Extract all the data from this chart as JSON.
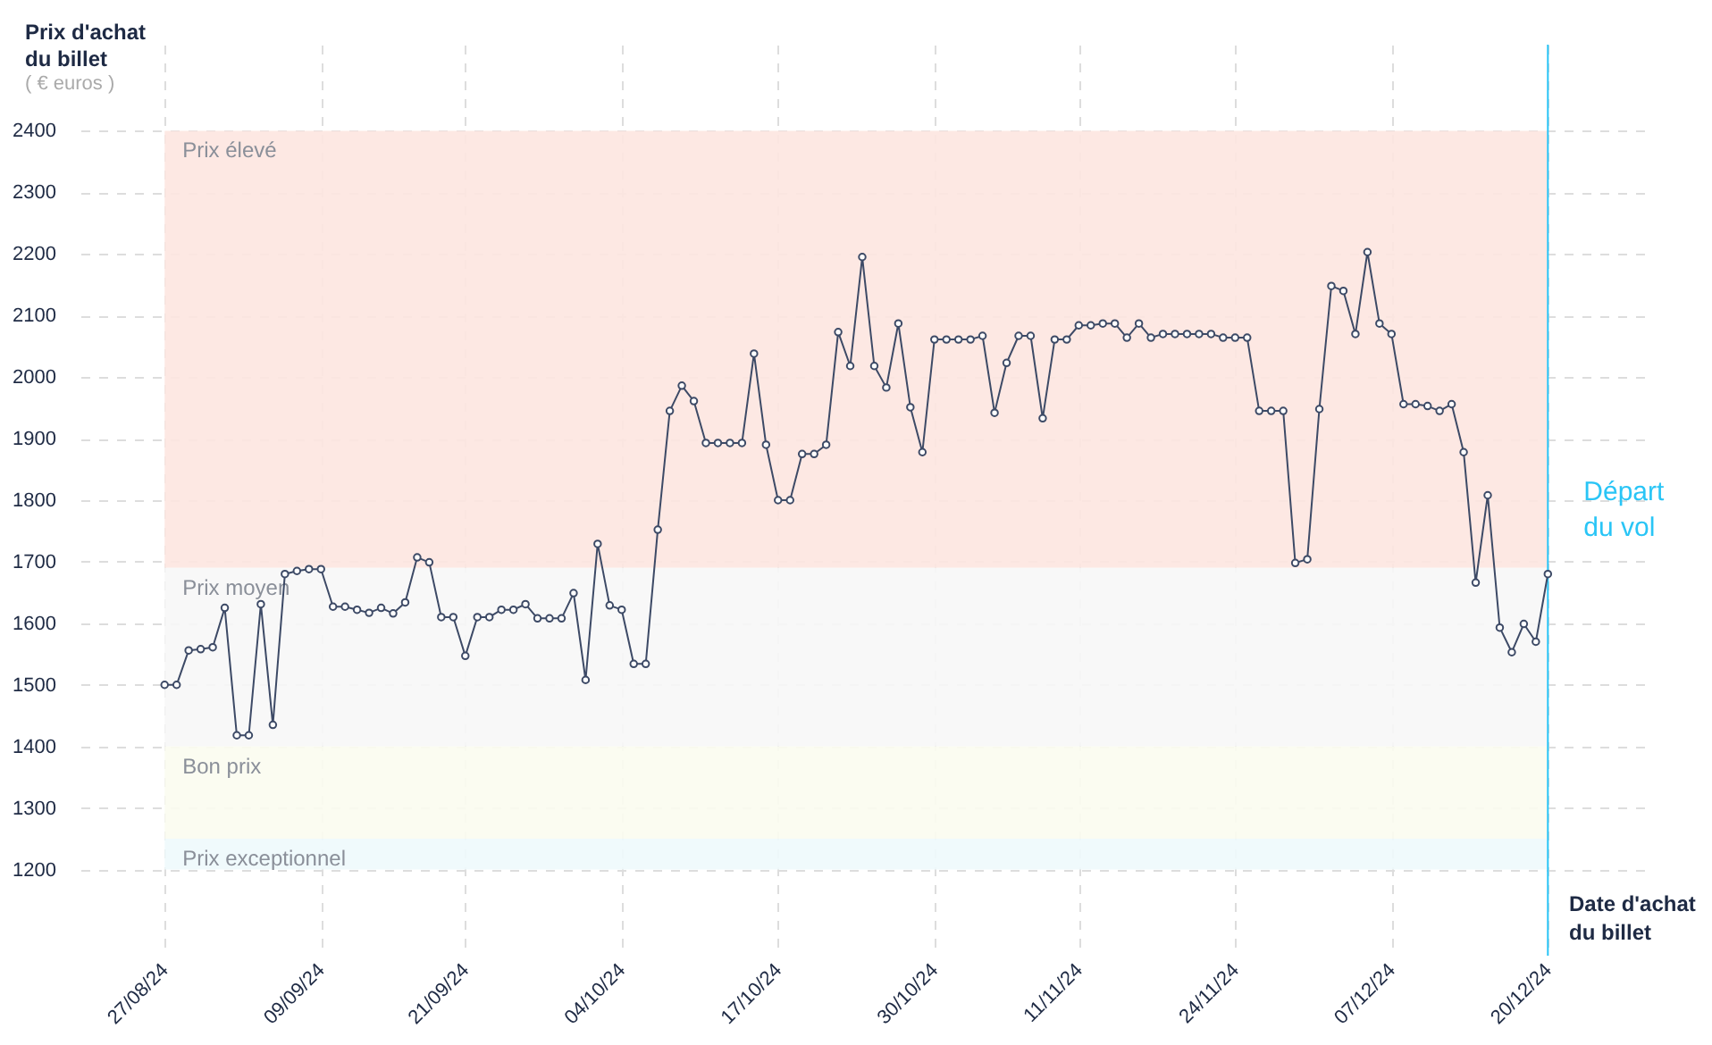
{
  "chart_data": {
    "type": "line",
    "ylabel": "Prix d'achat du billet",
    "xlabel": "Date d'achat du billet",
    "annotations": [
      "( € euros )"
    ],
    "x": [
      "--08-27",
      "--08-28",
      "--08-29",
      "--08-30",
      "--08-31",
      "--09-01",
      "--09-02",
      "--09-03",
      "--09-04",
      "--09-05",
      "--09-06",
      "--09-07",
      "--09-08",
      "--09-09",
      "--09-10",
      "--09-11",
      "--09-12",
      "--09-13",
      "--09-14",
      "--09-15",
      "--09-16",
      "--09-17",
      "--09-18",
      "--09-19",
      "--09-20",
      "--09-21",
      "--09-22",
      "--09-23",
      "--09-24",
      "--09-25",
      "--09-26",
      "--09-27",
      "--09-28",
      "--09-29",
      "--09-30",
      "--10-01",
      "--10-02",
      "--10-03",
      "--10-04",
      "--10-05",
      "--10-06",
      "--10-07",
      "--10-08",
      "--10-09",
      "--10-10",
      "--10-11",
      "--10-12",
      "--10-13",
      "--10-14",
      "--10-15",
      "--10-16",
      "--10-17",
      "--10-18",
      "--10-19",
      "--10-20",
      "--10-21",
      "--10-22",
      "--10-23",
      "--10-24",
      "--10-25",
      "--10-26",
      "--10-27",
      "--10-28",
      "--10-29",
      "--10-30",
      "--10-31",
      "--11-01",
      "--11-02",
      "--11-03",
      "--11-04",
      "--11-05",
      "--11-06",
      "--11-07",
      "--11-08",
      "--11-09",
      "--11-10",
      "--11-11",
      "--11-12",
      "--11-13",
      "--11-14",
      "--11-15",
      "--11-16",
      "--11-17",
      "--11-18",
      "--11-19",
      "--11-20",
      "--11-21",
      "--11-22",
      "--11-23",
      "--11-24",
      "--11-25",
      "--11-26",
      "--11-27",
      "--11-28",
      "--11-29",
      "--11-30",
      "--12-01",
      "--12-02",
      "--12-03",
      "--12-04",
      "--12-05",
      "--12-06",
      "--12-07",
      "--12-08",
      "--12-09",
      "--12-10",
      "--12-11",
      "--12-12",
      "--12-13",
      "--12-14",
      "--12-15",
      "--12-16",
      "--12-17",
      "--12-18",
      "--12-19",
      "--12-20"
    ],
    "series": [
      {
        "color": "#3d4a66",
        "values": [
          1500,
          1500,
          1556,
          1558,
          1561,
          1625,
          1418,
          1418,
          1631,
          1435,
          1680,
          1685,
          1688,
          1688,
          1627,
          1627,
          1622,
          1617,
          1625,
          1616,
          1634,
          1707,
          1699,
          1610,
          1610,
          1547,
          1610,
          1610,
          1622,
          1622,
          1631,
          1608,
          1608,
          1608,
          1649,
          1508,
          1729,
          1629,
          1622,
          1534,
          1534,
          1752,
          1945,
          1986,
          1961,
          1893,
          1893,
          1893,
          1893,
          2038,
          1890,
          1800,
          1800,
          1875,
          1875,
          1890,
          2073,
          2018,
          2195,
          2018,
          1983,
          2087,
          1951,
          1878,
          2061,
          2061,
          2061,
          2061,
          2067,
          1942,
          2023,
          2067,
          2067,
          1933,
          2061,
          2061,
          2084,
          2084,
          2087,
          2087,
          2064,
          2087,
          2064,
          2070,
          2070,
          2070,
          2070,
          2070,
          2064,
          2064,
          2064,
          1945,
          1945,
          1945,
          1698,
          1704,
          1948,
          2148,
          2140,
          2070,
          2203,
          2087,
          2070,
          1956,
          1956,
          1953,
          1945,
          1956,
          1878,
          1666,
          1808,
          1593,
          1553,
          1599,
          1570,
          1680
        ]
      }
    ],
    "xlim": [
      "--08-20",
      "--12-28"
    ],
    "xticks": [
      {
        "value": "--08-27",
        "label": "27/08/24"
      },
      {
        "value": "--09-09",
        "label": "09/09/24"
      },
      {
        "value": "--09-21",
        "label": "21/09/24"
      },
      {
        "value": "--10-04",
        "label": "04/10/24"
      },
      {
        "value": "--10-17",
        "label": "17/10/24"
      },
      {
        "value": "--10-30",
        "label": "30/10/24"
      },
      {
        "value": "--11-11",
        "label": "11/11/24"
      },
      {
        "value": "--11-24",
        "label": "24/11/24"
      },
      {
        "value": "--12-07",
        "label": "07/12/24"
      },
      {
        "value": "--12-20",
        "label": "20/12/24"
      }
    ],
    "ylim": [
      1060,
      2540
    ],
    "yticks": [
      1200,
      1300,
      1400,
      1500,
      1600,
      1700,
      1800,
      1900,
      2000,
      2100,
      2200,
      2300,
      2400
    ],
    "bands": [
      {
        "axis": "y",
        "from": 1690,
        "to": 2400,
        "label": "Prix élevé",
        "color": "#fde6e0"
      },
      {
        "axis": "y",
        "from": 1400,
        "to": 1690,
        "label": "Prix moyen",
        "color": "#f7f7f7"
      },
      {
        "axis": "y",
        "from": 1250,
        "to": 1400,
        "label": "Bon prix",
        "color": "#fbfcf0"
      },
      {
        "axis": "y",
        "from": 1200,
        "to": 1250,
        "label": "Prix exceptionnel",
        "color": "#eefafc"
      }
    ],
    "ref_lines": [
      {
        "axis": "x",
        "value": "--12-20",
        "label": "Départ du vol",
        "color": "#29c5f6"
      }
    ],
    "grid": true,
    "marker": "circle",
    "line_style": "solid"
  }
}
